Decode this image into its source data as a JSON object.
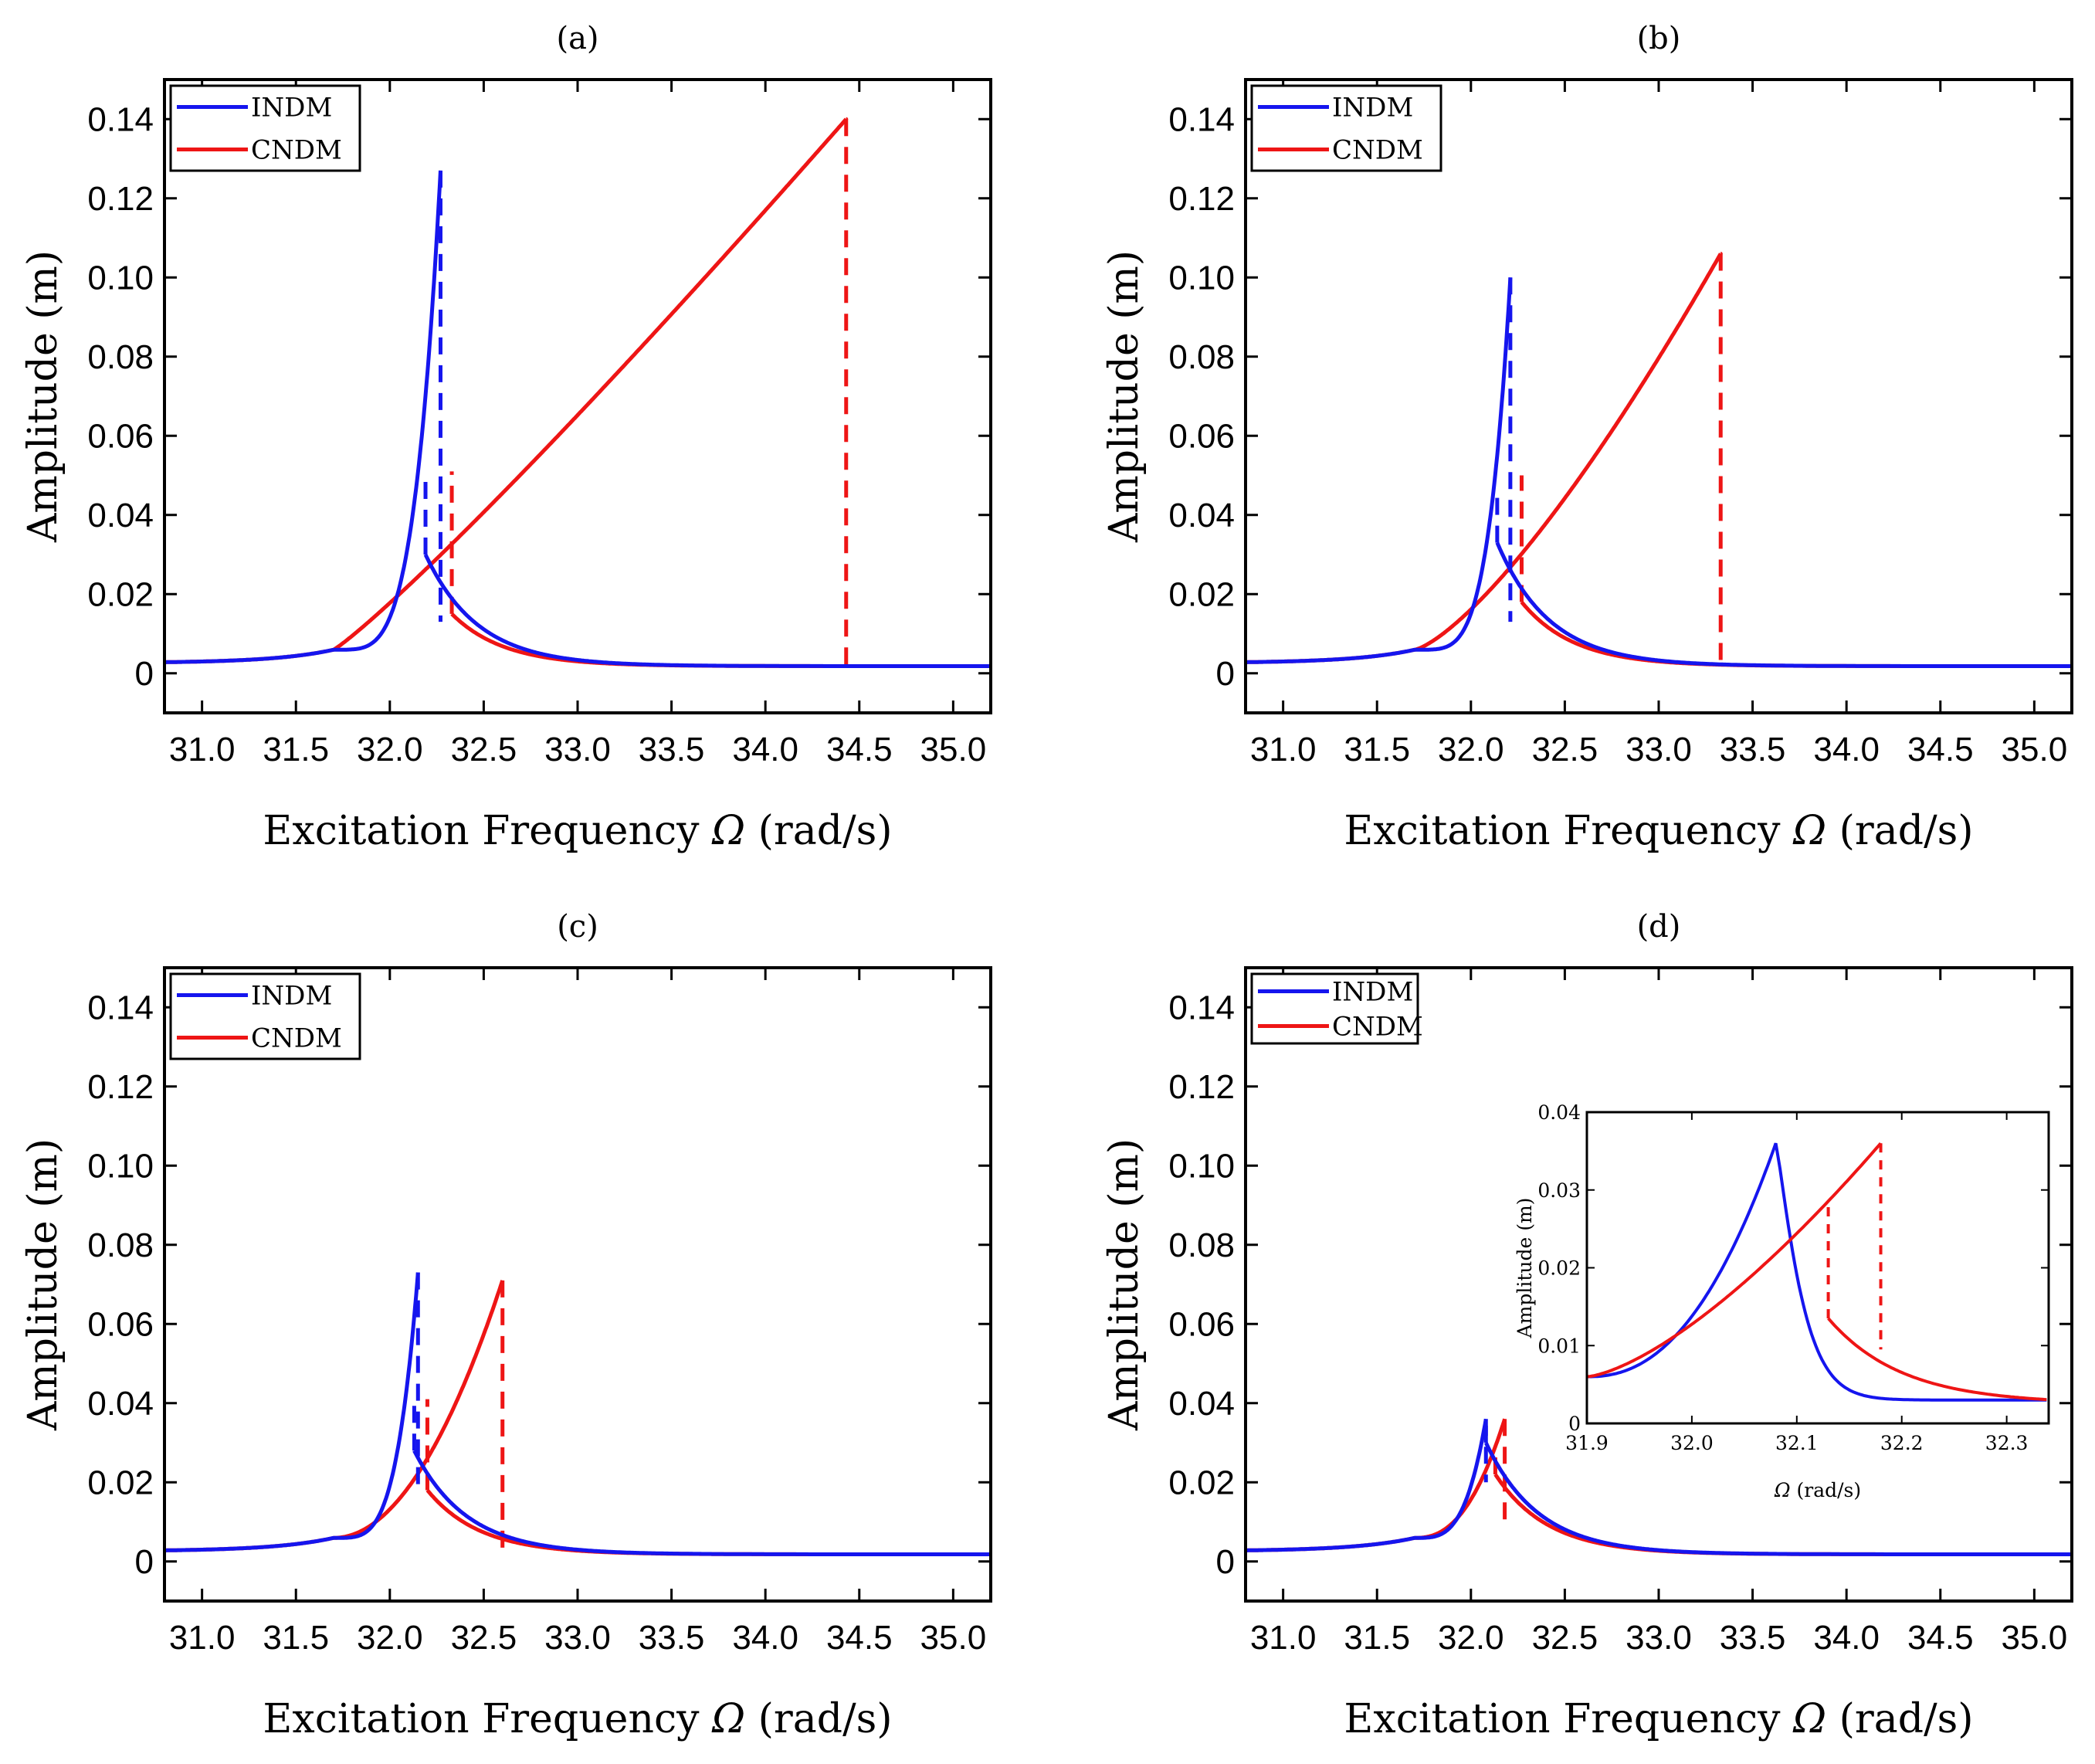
{
  "figure": {
    "xlabel_text": "Excitation Frequency ",
    "xlabel_symbol": "Ω",
    "xlabel_units": " (rad/s)",
    "ylabel": "Amplitude (m)",
    "xlim": [
      30.8,
      35.2
    ],
    "ylim": [
      -0.01,
      0.15
    ],
    "xticks": [
      "31.0",
      "31.5",
      "32.0",
      "32.5",
      "33.0",
      "33.5",
      "34.0",
      "34.5",
      "35.0"
    ],
    "yticks": [
      "0",
      "0.02",
      "0.04",
      "0.06",
      "0.08",
      "0.10",
      "0.12",
      "0.14"
    ],
    "colors": {
      "indm": "#1515ee",
      "cndm": "#ee1515"
    },
    "legend": [
      "INDM",
      "CNDM"
    ]
  },
  "chart_data": [
    {
      "type": "line",
      "title": "(a)",
      "xlabel": "Excitation Frequency Ω (rad/s)",
      "ylabel": "Amplitude (m)",
      "xlim": [
        30.8,
        35.2
      ],
      "ylim": [
        -0.01,
        0.15
      ],
      "series": [
        {
          "name": "INDM",
          "peak_freq": 32.27,
          "peak_amp": 0.127,
          "jump_down_freq": 32.27,
          "lower_branch_amp": 0.013,
          "jump_up_freq": 32.19,
          "upper_branch_amp_at_jump_up": 0.05
        },
        {
          "name": "CNDM",
          "peak_freq": 34.43,
          "peak_amp": 0.14,
          "jump_down_freq": 34.43,
          "lower_branch_amp": 0.0015,
          "jump_up_freq": 32.33,
          "upper_branch_amp_at_jump_up": 0.051
        }
      ]
    },
    {
      "type": "line",
      "title": "(b)",
      "xlabel": "Excitation Frequency Ω (rad/s)",
      "ylabel": "Amplitude (m)",
      "xlim": [
        30.8,
        35.2
      ],
      "ylim": [
        -0.01,
        0.15
      ],
      "series": [
        {
          "name": "INDM",
          "peak_freq": 32.21,
          "peak_amp": 0.1,
          "jump_down_freq": 32.21,
          "lower_branch_amp": 0.013,
          "jump_up_freq": 32.14,
          "upper_branch_amp_at_jump_up": 0.045
        },
        {
          "name": "CNDM",
          "peak_freq": 33.33,
          "peak_amp": 0.106,
          "jump_down_freq": 33.33,
          "lower_branch_amp": 0.0025,
          "jump_up_freq": 32.27,
          "upper_branch_amp_at_jump_up": 0.05
        }
      ]
    },
    {
      "type": "line",
      "title": "(c)",
      "xlabel": "Excitation Frequency Ω (rad/s)",
      "ylabel": "Amplitude (m)",
      "xlim": [
        30.8,
        35.2
      ],
      "ylim": [
        -0.01,
        0.15
      ],
      "series": [
        {
          "name": "INDM",
          "peak_freq": 32.15,
          "peak_amp": 0.073,
          "jump_down_freq": 32.15,
          "lower_branch_amp": 0.018,
          "jump_up_freq": 32.13,
          "upper_branch_amp_at_jump_up": 0.04
        },
        {
          "name": "CNDM",
          "peak_freq": 32.6,
          "peak_amp": 0.071,
          "jump_down_freq": 32.6,
          "lower_branch_amp": 0.0035,
          "jump_up_freq": 32.2,
          "upper_branch_amp_at_jump_up": 0.041
        }
      ]
    },
    {
      "type": "line",
      "title": "(d)",
      "xlabel": "Excitation Frequency Ω (rad/s)",
      "ylabel": "Amplitude (m)",
      "xlim": [
        30.8,
        35.2
      ],
      "ylim": [
        -0.01,
        0.15
      ],
      "series": [
        {
          "name": "INDM",
          "peak_freq": 32.08,
          "peak_amp": 0.036,
          "jump_down_freq": 32.08,
          "lower_branch_amp": 0.02,
          "jump_up_freq": 32.08,
          "upper_branch_amp_at_jump_up": 0.036
        },
        {
          "name": "CNDM",
          "peak_freq": 32.18,
          "peak_amp": 0.036,
          "jump_down_freq": 32.18,
          "lower_branch_amp": 0.009,
          "jump_up_freq": 32.13,
          "upper_branch_amp_at_jump_up": 0.028
        }
      ],
      "inset": {
        "xlabel_symbol": "Ω",
        "xlabel_units": " (rad/s)",
        "ylabel": "Amplitude (m)",
        "xlim": [
          31.9,
          32.34
        ],
        "ylim": [
          0,
          0.04
        ],
        "xticks": [
          "31.9",
          "32.0",
          "32.1",
          "32.2",
          "32.3"
        ],
        "yticks": [
          "0",
          "0.01",
          "0.02",
          "0.03",
          "0.04"
        ]
      }
    }
  ]
}
